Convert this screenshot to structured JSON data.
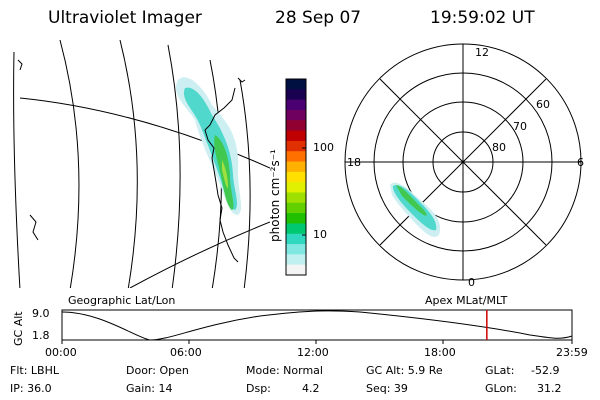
{
  "header": {
    "instrument": "Ultraviolet Imager",
    "date": "28 Sep 07",
    "time": "19:59:02 UT"
  },
  "colorbar": {
    "unit_label": "photon cm⁻²s⁻¹",
    "ticks": [
      "100",
      "10"
    ],
    "colors": [
      "#001040",
      "#1a0050",
      "#4a0070",
      "#700060",
      "#900030",
      "#c00000",
      "#e03000",
      "#ff7000",
      "#ffb000",
      "#ffe000",
      "#e0f000",
      "#a0e000",
      "#60d000",
      "#20c000",
      "#00c870",
      "#30d8c0",
      "#80e8e0",
      "#c0f0f0",
      "#f4f4f4"
    ]
  },
  "geo_map": {
    "label": "Geographic Lat/Lon"
  },
  "polar_map": {
    "label": "Apex  MLat/MLT",
    "mlt_labels": {
      "top": "12",
      "right": "6",
      "bottom": "0",
      "left": "18"
    },
    "mlat_labels": [
      "60",
      "70",
      "80"
    ]
  },
  "timeline": {
    "ylabel": "GC Alt",
    "y_ticks": [
      "9.0",
      "1.8"
    ],
    "x_ticks": [
      "00:00",
      "06:00",
      "12:00",
      "18:00",
      "23:59"
    ],
    "current_time_fraction": 0.833,
    "marker_color": "#d00000"
  },
  "info": {
    "filter": "Flt: LBHL",
    "ip": "IP: 36.0",
    "door": "Door: Open",
    "gain": "Gain: 14",
    "mode": "Mode: Normal",
    "dsp_label": "Dsp:",
    "dsp_value": "4.2",
    "gc_alt": "GC Alt: 5.9 Re",
    "seq": "Seq: 39",
    "glat_label": "GLat:",
    "glat_value": "-52.9",
    "glon_label": "GLon:",
    "glon_value": "31.2"
  }
}
